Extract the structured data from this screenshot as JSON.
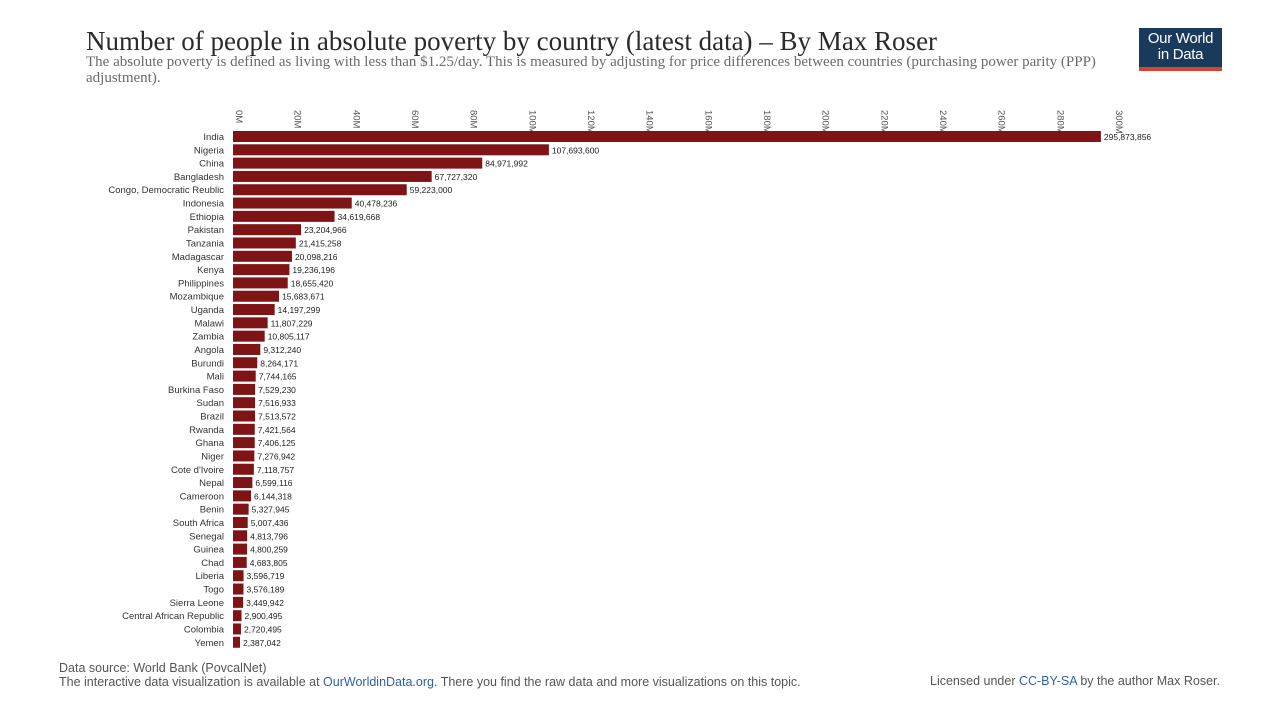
{
  "header": {
    "title": "Number of people in absolute poverty by country (latest data) – By Max Roser",
    "subtitle": "The absolute poverty is defined as living with less than $1.25/day. This is measured by adjusting for price differences between countries (purchasing power parity (PPP) adjustment).",
    "logo_line1": "Our World",
    "logo_line2": "in Data"
  },
  "colors": {
    "bar": "#7f1416",
    "logo_bg": "#1a3a5c",
    "logo_accent": "#d6432f",
    "link": "#3360a9"
  },
  "chart_data": {
    "type": "bar",
    "orientation": "horizontal",
    "title": "Number of people in absolute poverty by country (latest data)",
    "xlim": [
      0,
      300000000
    ],
    "ticks": [
      {
        "value": 0,
        "label": "0M"
      },
      {
        "value": 20000000,
        "label": "20M"
      },
      {
        "value": 40000000,
        "label": "40M"
      },
      {
        "value": 60000000,
        "label": "60M"
      },
      {
        "value": 80000000,
        "label": "80M"
      },
      {
        "value": 100000000,
        "label": "100M"
      },
      {
        "value": 120000000,
        "label": "120M"
      },
      {
        "value": 140000000,
        "label": "140M"
      },
      {
        "value": 160000000,
        "label": "160M"
      },
      {
        "value": 180000000,
        "label": "180M"
      },
      {
        "value": 200000000,
        "label": "200M"
      },
      {
        "value": 220000000,
        "label": "220M"
      },
      {
        "value": 240000000,
        "label": "240M"
      },
      {
        "value": 260000000,
        "label": "260M"
      },
      {
        "value": 280000000,
        "label": "280M"
      },
      {
        "value": 300000000,
        "label": "300M"
      }
    ],
    "categories": [
      "India",
      "Nigeria",
      "China",
      "Bangladesh",
      "Congo, Democratic Reublic",
      "Indonesia",
      "Ethiopia",
      "Pakistan",
      "Tanzania",
      "Madagascar",
      "Kenya",
      "Philippines",
      "Mozambique",
      "Uganda",
      "Malawi",
      "Zambia",
      "Angola",
      "Burundi",
      "Mali",
      "Burkina Faso",
      "Sudan",
      "Brazil",
      "Rwanda",
      "Ghana",
      "Niger",
      "Cote d'Ivoire",
      "Nepal",
      "Cameroon",
      "Benin",
      "South Africa",
      "Senegal",
      "Guinea",
      "Chad",
      "Liberia",
      "Togo",
      "Sierra Leone",
      "Central African Republic",
      "Colombia",
      "Yemen"
    ],
    "values": [
      295873856,
      107693600,
      84971992,
      67727320,
      59223000,
      40478236,
      34619668,
      23204966,
      21415258,
      20098216,
      19236196,
      18655420,
      15683671,
      14197299,
      11807229,
      10805117,
      9312240,
      8264171,
      7744165,
      7529230,
      7516933,
      7513572,
      7421564,
      7406125,
      7276942,
      7118757,
      6599116,
      6144318,
      5327945,
      5007436,
      4813796,
      4800259,
      4683805,
      3596719,
      3576189,
      3449942,
      2900495,
      2720495,
      2387042
    ],
    "value_labels": [
      "295,873,856",
      "107,693,600",
      "84,971,992",
      "67,727,320",
      "59,223,000",
      "40,478,236",
      "34,619,668",
      "23,204,966",
      "21,415,258",
      "20,098,216",
      "19,236,196",
      "18,655,420",
      "15,683,671",
      "14,197,299",
      "11,807,229",
      "10,805,117",
      "9,312,240",
      "8,264,171",
      "7,744,165",
      "7,529,230",
      "7,516,933",
      "7,513,572",
      "7,421,564",
      "7,406,125",
      "7,276,942",
      "7,118,757",
      "6,599,116",
      "6,144,318",
      "5,327,945",
      "5,007,436",
      "4,813,796",
      "4,800,259",
      "4,683,805",
      "3,596,719",
      "3,576,189",
      "3,449,942",
      "2,900,495",
      "2,720,495",
      "2,387,042"
    ]
  },
  "footer": {
    "source": "Data source: World Bank (PovcalNet)",
    "interactive_prefix": "The interactive data visualization is available at ",
    "interactive_link": "OurWorldinData.org",
    "interactive_suffix": ". There you find the raw data and more visualizations on this topic.",
    "license_prefix": "Licensed under ",
    "license_link": "CC-BY-SA",
    "license_suffix": " by the author Max Roser."
  }
}
